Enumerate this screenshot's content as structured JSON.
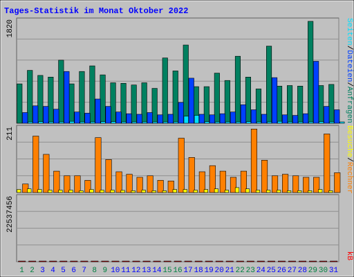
{
  "title": "Tages-Statistik im Monat Oktober 2022",
  "colors": {
    "anfragen": "#008060",
    "dateien": "#0040ff",
    "seiten": "#00e0ff",
    "besuche": "#ffff00",
    "rechner": "#ff8000",
    "kb": "#ff0000",
    "title": "#0000ff",
    "weekend": "#008040",
    "weekday": "#0000ff"
  },
  "chart_data": [
    {
      "type": "bar",
      "name": "top",
      "ymax_label": "1820",
      "ymax": 1820,
      "right_labels": [
        "Anfragen",
        "Dateien",
        "Seiten"
      ],
      "categories": [
        "1",
        "2",
        "3",
        "4",
        "5",
        "6",
        "7",
        "8",
        "9",
        "10",
        "11",
        "12",
        "13",
        "14",
        "15",
        "16",
        "17",
        "18",
        "19",
        "20",
        "21",
        "22",
        "23",
        "24",
        "25",
        "26",
        "27",
        "28",
        "29",
        "30",
        "31"
      ],
      "weekend_days": [
        1,
        2,
        8,
        9,
        15,
        16,
        22,
        23,
        29,
        30
      ],
      "series": [
        {
          "name": "Anfragen",
          "values": [
            700,
            940,
            850,
            820,
            1120,
            700,
            920,
            1020,
            860,
            720,
            710,
            680,
            720,
            620,
            1160,
            930,
            1390,
            650,
            650,
            890,
            760,
            1190,
            820,
            610,
            1370,
            660,
            670,
            660,
            1810,
            670,
            690
          ]
        },
        {
          "name": "Dateien",
          "values": [
            190,
            310,
            300,
            250,
            920,
            200,
            180,
            430,
            300,
            200,
            170,
            160,
            190,
            150,
            160,
            370,
            800,
            160,
            150,
            170,
            200,
            330,
            240,
            160,
            810,
            150,
            140,
            170,
            1100,
            300,
            240
          ]
        },
        {
          "name": "Seiten",
          "values": [
            25,
            30,
            25,
            25,
            35,
            25,
            25,
            30,
            30,
            25,
            25,
            25,
            25,
            25,
            25,
            125,
            140,
            30,
            25,
            25,
            25,
            30,
            25,
            25,
            35,
            25,
            25,
            25,
            30,
            25,
            25
          ]
        }
      ]
    },
    {
      "type": "bar",
      "name": "middle",
      "ymax_label": "211",
      "ymax": 211,
      "right_labels": [
        "Rechner",
        "Besuche"
      ],
      "categories": [
        "1",
        "2",
        "3",
        "4",
        "5",
        "6",
        "7",
        "8",
        "9",
        "10",
        "11",
        "12",
        "13",
        "14",
        "15",
        "16",
        "17",
        "18",
        "19",
        "20",
        "21",
        "22",
        "23",
        "24",
        "25",
        "26",
        "27",
        "28",
        "29",
        "30",
        "31"
      ],
      "series": [
        {
          "name": "Rechner",
          "values": [
            28,
            185,
            125,
            70,
            55,
            55,
            40,
            180,
            108,
            68,
            60,
            50,
            55,
            40,
            38,
            178,
            115,
            68,
            88,
            70,
            50,
            70,
            208,
            106,
            55,
            60,
            55,
            50,
            50,
            192,
            65
          ]
        },
        {
          "name": "Besuche",
          "values": [
            10,
            12,
            10,
            8,
            8,
            8,
            6,
            10,
            8,
            8,
            7,
            6,
            8,
            6,
            6,
            10,
            10,
            8,
            10,
            12,
            8,
            16,
            12,
            8,
            8,
            8,
            6,
            6,
            6,
            10,
            6
          ]
        }
      ]
    },
    {
      "type": "bar",
      "name": "bottom",
      "ymax_label": "22537456",
      "ymax": 22537456,
      "right_labels": [
        "kB"
      ],
      "categories": [
        "1",
        "2",
        "3",
        "4",
        "5",
        "6",
        "7",
        "8",
        "9",
        "10",
        "11",
        "12",
        "13",
        "14",
        "15",
        "16",
        "17",
        "18",
        "19",
        "20",
        "21",
        "22",
        "23",
        "24",
        "25",
        "26",
        "27",
        "28",
        "29",
        "30",
        "31"
      ],
      "series": [
        {
          "name": "kB",
          "values": [
            4100,
            12100,
            11200,
            6700,
            12000,
            6300,
            4500,
            14600,
            9400,
            5100,
            4500,
            3900,
            4000,
            3600,
            4300,
            13800,
            7800,
            6000,
            4500,
            3600,
            3800,
            2900,
            14600,
            9800,
            2300,
            5600,
            4000,
            3500,
            4500,
            22500,
            8200
          ]
        }
      ]
    }
  ]
}
